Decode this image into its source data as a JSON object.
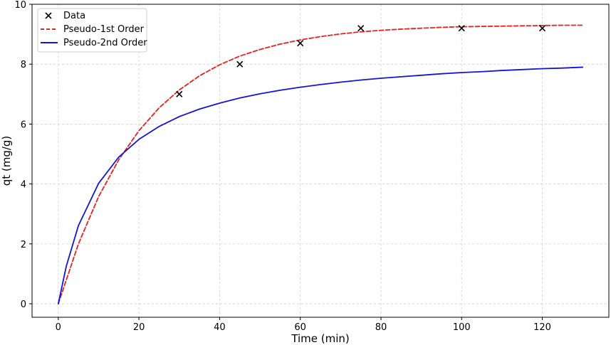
{
  "chart_data": {
    "type": "line",
    "title": "",
    "xlabel": "Time (min)",
    "ylabel": "qt (mg/g)",
    "xlim": [
      -6.5,
      136.5
    ],
    "ylim": [
      -0.45,
      10
    ],
    "xticks": [
      0,
      20,
      40,
      60,
      80,
      100,
      120
    ],
    "yticks": [
      0,
      2,
      4,
      6,
      8,
      10
    ],
    "grid": true,
    "legend_position": "top-left",
    "data_points": {
      "name": "Data",
      "marker": "x",
      "color": "#000000",
      "x": [
        30,
        45,
        60,
        75,
        100,
        120
      ],
      "y": [
        7.0,
        8.0,
        8.7,
        9.2,
        9.2,
        9.2
      ]
    },
    "series": [
      {
        "name": "Pseudo-1st Order",
        "style": "dashed",
        "color": "#e8221f",
        "x": [
          0,
          5,
          10,
          15,
          20,
          25,
          30,
          35,
          40,
          45,
          50,
          55,
          60,
          65,
          70,
          75,
          80,
          85,
          90,
          95,
          100,
          105,
          110,
          115,
          120,
          125,
          130
        ],
        "y": [
          0,
          2.0,
          3.58,
          4.81,
          5.78,
          6.54,
          7.14,
          7.61,
          7.98,
          8.27,
          8.49,
          8.67,
          8.81,
          8.92,
          9.01,
          9.08,
          9.13,
          9.17,
          9.2,
          9.23,
          9.25,
          9.26,
          9.27,
          9.28,
          9.29,
          9.3,
          9.3
        ]
      },
      {
        "name": "Pseudo-2nd Order",
        "style": "solid",
        "color": "#1414d8",
        "x": [
          0,
          2,
          5,
          10,
          15,
          20,
          25,
          30,
          35,
          40,
          45,
          50,
          55,
          60,
          65,
          70,
          75,
          80,
          85,
          90,
          95,
          100,
          105,
          110,
          115,
          120,
          125,
          130
        ],
        "y": [
          0,
          1.26,
          2.61,
          4.02,
          4.9,
          5.49,
          5.92,
          6.25,
          6.5,
          6.7,
          6.87,
          7.01,
          7.13,
          7.23,
          7.32,
          7.4,
          7.47,
          7.53,
          7.58,
          7.63,
          7.68,
          7.72,
          7.75,
          7.79,
          7.82,
          7.85,
          7.87,
          7.9
        ]
      }
    ]
  }
}
